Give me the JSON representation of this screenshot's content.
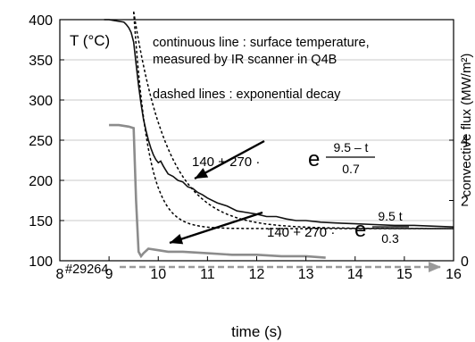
{
  "chart_data": {
    "type": "line",
    "title": "",
    "xlabel": "time (s)",
    "ylabel_left": "T (°C)",
    "ylabel_right": "convective flux (MW/m²)",
    "xlim": [
      8,
      16
    ],
    "ylim_left": [
      100,
      400
    ],
    "ylim_right": [
      0,
      8
    ],
    "x_ticks": [
      "8",
      "9",
      "10",
      "11",
      "12",
      "13",
      "14",
      "15",
      "16"
    ],
    "y_ticks_left": [
      "100",
      "150",
      "200",
      "250",
      "300",
      "350",
      "400"
    ],
    "y_ticks_right": [
      "0",
      "2",
      "4"
    ],
    "grid": "horizontal",
    "annotations": {
      "legend_continuous": "continuous line : surface temperature,",
      "legend_continuous_2": "measured by IR scanner in Q4B",
      "legend_dashed": "dashed lines : exponential decay",
      "shot_label": "#29264",
      "formula1": {
        "prefix": "140 + 270 · ",
        "e": "e",
        "num": "9.5 – t",
        "den": "0.7"
      },
      "formula2": {
        "prefix": "140 + 270 · ",
        "e": "e",
        "num": "9.5   t",
        "den": "0.3"
      }
    },
    "series": [
      {
        "style": "solid-black",
        "axis": "left",
        "x": [
          8.9,
          9.0,
          9.1,
          9.2,
          9.3,
          9.35,
          9.4,
          9.45,
          9.5,
          9.55,
          9.6,
          9.65,
          9.7,
          9.75,
          9.8,
          9.85,
          9.9,
          9.95,
          10.0,
          10.05,
          10.1,
          10.15,
          10.2,
          10.3,
          10.4,
          10.5,
          10.6,
          10.7,
          10.8,
          10.9,
          11.0,
          11.2,
          11.4,
          11.6,
          11.8,
          12.0,
          12.2,
          12.4,
          12.6,
          12.8,
          13.0,
          13.3,
          13.6,
          14.0,
          14.4,
          14.8,
          15.2,
          15.6,
          16.0
        ],
        "y": [
          400,
          400,
          399,
          398,
          397,
          394,
          390,
          384,
          372,
          345,
          318,
          295,
          276,
          262,
          250,
          240,
          232,
          226,
          222,
          224,
          218,
          213,
          208,
          205,
          200,
          198,
          192,
          190,
          185,
          182,
          178,
          172,
          168,
          162,
          160,
          158,
          155,
          155,
          152,
          150,
          150,
          148,
          147,
          146,
          145,
          144,
          144,
          143,
          142
        ]
      },
      {
        "style": "dashed-black",
        "axis": "left",
        "name": "140 + 270·exp((9.5 − t)/0.7)",
        "model": {
          "a": 140,
          "b": 270,
          "t0": 9.5,
          "tau": 0.7,
          "from": 9.5,
          "to": 16
        }
      },
      {
        "style": "dashed-black",
        "axis": "left",
        "name": "140 + 270·exp((9.5 − t)/0.3)",
        "model": {
          "a": 140,
          "b": 270,
          "t0": 9.5,
          "tau": 0.3,
          "from": 9.5,
          "to": 16
        }
      },
      {
        "style": "solid-gray",
        "axis": "right",
        "x": [
          9.0,
          9.2,
          9.4,
          9.5,
          9.55,
          9.6,
          9.65,
          9.7,
          9.8,
          10.0,
          10.2,
          10.5,
          11.0,
          11.5,
          12.0,
          12.5,
          13.0,
          13.4
        ],
        "y": [
          4.5,
          4.5,
          4.45,
          4.4,
          2.0,
          0.3,
          0.15,
          0.25,
          0.4,
          0.35,
          0.3,
          0.3,
          0.25,
          0.2,
          0.2,
          0.15,
          0.15,
          0.1
        ]
      }
    ],
    "colors": {
      "temperature": "#111111",
      "flux": "#8c8c8c",
      "arrow": "#9a9a9a",
      "grid": "#c8c8c8"
    }
  }
}
